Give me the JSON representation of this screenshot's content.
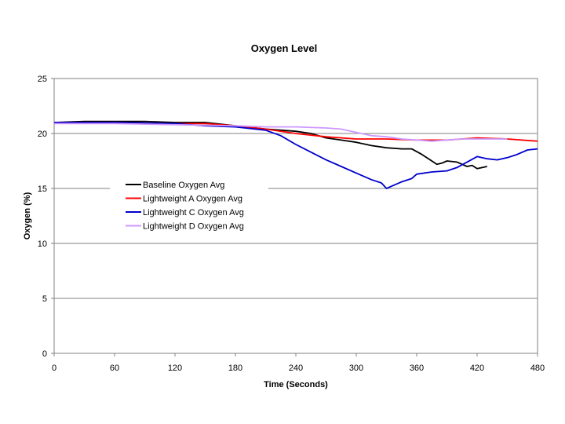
{
  "chart_data": {
    "type": "line",
    "title": "Oxygen Level",
    "xlabel": "Time (Seconds)",
    "ylabel": "Oxygen (%)",
    "xlim": [
      0,
      480
    ],
    "ylim": [
      0,
      25
    ],
    "xticks": [
      0,
      60,
      120,
      180,
      240,
      300,
      360,
      420,
      480
    ],
    "yticks": [
      0,
      5,
      10,
      15,
      20,
      25
    ],
    "grid": "horizontal",
    "legend_position": "center-left",
    "series": [
      {
        "name": "Baseline Oxygen Avg",
        "color": "#000000",
        "x": [
          0,
          30,
          60,
          90,
          120,
          150,
          160,
          180,
          210,
          240,
          255,
          270,
          285,
          300,
          315,
          330,
          345,
          355,
          365,
          375,
          380,
          385,
          390,
          400,
          410,
          415,
          420,
          425,
          430
        ],
        "y": [
          21.0,
          21.1,
          21.1,
          21.1,
          21.0,
          21.0,
          20.9,
          20.7,
          20.4,
          20.2,
          20.0,
          19.6,
          19.4,
          19.2,
          18.9,
          18.7,
          18.6,
          18.6,
          18.1,
          17.5,
          17.2,
          17.3,
          17.5,
          17.4,
          17.0,
          17.1,
          16.8,
          16.9,
          17.0
        ]
      },
      {
        "name": "Lightweight A Oxygen Avg",
        "color": "#ff0000",
        "x": [
          0,
          60,
          120,
          150,
          180,
          210,
          240,
          270,
          300,
          330,
          360,
          390,
          420,
          450,
          480
        ],
        "y": [
          21.0,
          21.0,
          20.9,
          20.9,
          20.7,
          20.4,
          20.0,
          19.7,
          19.5,
          19.5,
          19.4,
          19.4,
          19.6,
          19.5,
          19.3
        ]
      },
      {
        "name": "Lightweight C Oxygen Avg",
        "color": "#0000cc",
        "x": [
          0,
          60,
          120,
          150,
          180,
          210,
          225,
          240,
          255,
          270,
          285,
          300,
          315,
          325,
          330,
          335,
          345,
          355,
          360,
          375,
          390,
          400,
          410,
          420,
          430,
          440,
          450,
          460,
          470,
          480
        ],
        "y": [
          21.0,
          21.0,
          20.9,
          20.7,
          20.6,
          20.3,
          19.8,
          19.0,
          18.3,
          17.6,
          17.0,
          16.4,
          15.8,
          15.5,
          15.0,
          15.2,
          15.6,
          15.9,
          16.3,
          16.5,
          16.6,
          16.9,
          17.4,
          17.9,
          17.7,
          17.6,
          17.8,
          18.1,
          18.5,
          18.6
        ]
      },
      {
        "name": "Lightweight D Oxygen Avg",
        "color": "#cc99ff",
        "x": [
          0,
          60,
          120,
          180,
          210,
          240,
          270,
          285,
          300,
          315,
          330,
          345,
          360,
          375,
          390,
          405,
          420,
          450
        ],
        "y": [
          20.9,
          20.9,
          20.8,
          20.7,
          20.6,
          20.6,
          20.5,
          20.4,
          20.1,
          19.8,
          19.7,
          19.5,
          19.4,
          19.3,
          19.4,
          19.5,
          19.5,
          19.5
        ]
      }
    ]
  }
}
